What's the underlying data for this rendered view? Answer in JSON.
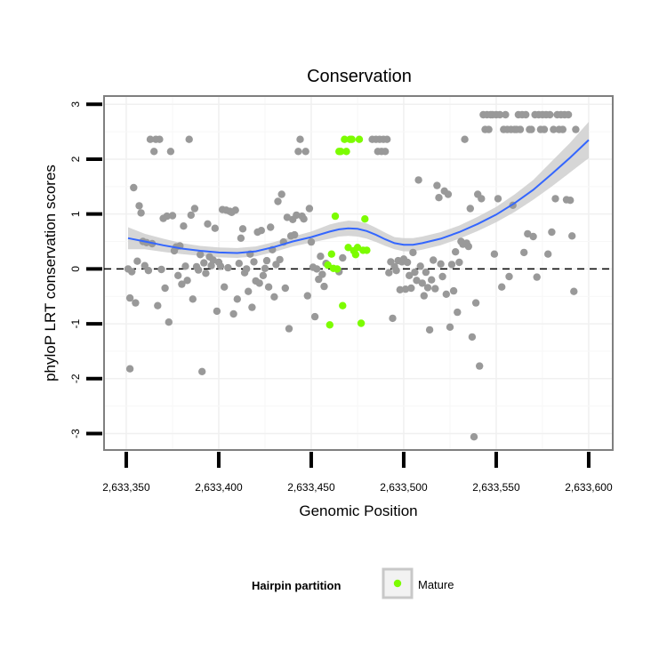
{
  "chart_data": {
    "type": "scatter",
    "title": "Conservation",
    "xlabel": "Genomic Position",
    "ylabel": "phyloP LRT conservation scores",
    "xlim": [
      2633338,
      2633613
    ],
    "ylim": [
      -3.3,
      3.15
    ],
    "x_ticks": [
      2633350,
      2633400,
      2633450,
      2633500,
      2633550,
      2633600
    ],
    "x_tick_labels": [
      "2,633,350",
      "2,633,400",
      "2,633,450",
      "2,633,500",
      "2,633,550",
      "2,633,600"
    ],
    "y_ticks": [
      -3,
      -2,
      -1,
      0,
      1,
      2,
      3
    ],
    "y_tick_labels": [
      "-3",
      "-2",
      "-1",
      "0",
      "1",
      "2",
      "3"
    ],
    "grid": true,
    "reference_line": {
      "y": 0,
      "style": "dashed"
    },
    "legend": {
      "title": "Hairpin partition",
      "placement": "bottom",
      "entries": [
        "Mature"
      ]
    },
    "colors": {
      "other": "#999999",
      "mature": "#7cfc00",
      "smooth": "#3366ff",
      "band": "#cccccc"
    },
    "series": [
      {
        "name": "",
        "role": "other",
        "points": [
          [
            2633351,
            0.0
          ],
          [
            2633352,
            -0.53
          ],
          [
            2633352,
            -1.82
          ],
          [
            2633353,
            -0.05
          ],
          [
            2633354,
            1.48
          ],
          [
            2633355,
            -0.62
          ],
          [
            2633356,
            0.14
          ],
          [
            2633357,
            1.15
          ],
          [
            2633358,
            1.02
          ],
          [
            2633359,
            0.5
          ],
          [
            2633360,
            0.06
          ],
          [
            2633361,
            0.48
          ],
          [
            2633362,
            -0.03
          ],
          [
            2633363,
            2.36
          ],
          [
            2633364,
            0.46
          ],
          [
            2633365,
            2.14
          ],
          [
            2633366,
            2.36
          ],
          [
            2633367,
            -0.67
          ],
          [
            2633368,
            2.36
          ],
          [
            2633369,
            -0.01
          ],
          [
            2633370,
            0.92
          ],
          [
            2633371,
            -0.35
          ],
          [
            2633372,
            0.96
          ],
          [
            2633373,
            -0.97
          ],
          [
            2633374,
            2.14
          ],
          [
            2633375,
            0.97
          ],
          [
            2633376,
            0.33
          ],
          [
            2633377,
            0.4
          ],
          [
            2633378,
            -0.12
          ],
          [
            2633379,
            0.42
          ],
          [
            2633380,
            -0.28
          ],
          [
            2633381,
            0.78
          ],
          [
            2633382,
            0.05
          ],
          [
            2633383,
            -0.21
          ],
          [
            2633384,
            2.36
          ],
          [
            2633385,
            0.98
          ],
          [
            2633386,
            -0.55
          ],
          [
            2633387,
            1.1
          ],
          [
            2633388,
            0.04
          ],
          [
            2633389,
            -0.02
          ],
          [
            2633390,
            0.26
          ],
          [
            2633391,
            -1.87
          ],
          [
            2633392,
            0.11
          ],
          [
            2633393,
            -0.08
          ],
          [
            2633394,
            0.82
          ],
          [
            2633395,
            0.22
          ],
          [
            2633396,
            0.06
          ],
          [
            2633397,
            0.16
          ],
          [
            2633398,
            0.74
          ],
          [
            2633399,
            -0.77
          ],
          [
            2633400,
            0.12
          ],
          [
            2633401,
            0.05
          ],
          [
            2633402,
            1.08
          ],
          [
            2633403,
            -0.33
          ],
          [
            2633404,
            1.07
          ],
          [
            2633405,
            0.02
          ],
          [
            2633406,
            1.05
          ],
          [
            2633407,
            1.03
          ],
          [
            2633408,
            -0.82
          ],
          [
            2633409,
            1.07
          ],
          [
            2633410,
            -0.55
          ],
          [
            2633411,
            0.1
          ],
          [
            2633412,
            0.56
          ],
          [
            2633413,
            0.73
          ],
          [
            2633414,
            -0.07
          ],
          [
            2633415,
            0.0
          ],
          [
            2633416,
            -0.41
          ],
          [
            2633417,
            0.27
          ],
          [
            2633418,
            -0.7
          ],
          [
            2633419,
            0.13
          ],
          [
            2633420,
            -0.22
          ],
          [
            2633421,
            0.67
          ],
          [
            2633422,
            -0.26
          ],
          [
            2633423,
            0.7
          ],
          [
            2633424,
            -0.12
          ],
          [
            2633425,
            0.01
          ],
          [
            2633426,
            0.15
          ],
          [
            2633427,
            -0.33
          ],
          [
            2633428,
            0.76
          ],
          [
            2633429,
            0.35
          ],
          [
            2633430,
            -0.51
          ],
          [
            2633431,
            0.08
          ],
          [
            2633432,
            1.23
          ],
          [
            2633433,
            0.17
          ],
          [
            2633434,
            1.36
          ],
          [
            2633435,
            0.49
          ],
          [
            2633436,
            -0.35
          ],
          [
            2633437,
            0.94
          ],
          [
            2633438,
            -1.09
          ],
          [
            2633439,
            0.6
          ],
          [
            2633440,
            0.9
          ],
          [
            2633441,
            0.62
          ],
          [
            2633442,
            0.98
          ],
          [
            2633443,
            2.14
          ],
          [
            2633444,
            2.36
          ],
          [
            2633445,
            0.96
          ],
          [
            2633446,
            0.91
          ],
          [
            2633447,
            2.14
          ],
          [
            2633448,
            -0.49
          ],
          [
            2633449,
            1.1
          ],
          [
            2633450,
            0.49
          ],
          [
            2633451,
            0.03
          ],
          [
            2633452,
            -0.87
          ],
          [
            2633453,
            0.0
          ],
          [
            2633454,
            -0.19
          ],
          [
            2633455,
            0.23
          ],
          [
            2633456,
            -0.1
          ],
          [
            2633457,
            -0.32
          ],
          [
            2633458,
            0.1
          ],
          [
            2633465,
            -0.05
          ],
          [
            2633467,
            0.2
          ],
          [
            2633483,
            2.36
          ],
          [
            2633485,
            2.36
          ],
          [
            2633486,
            2.14
          ],
          [
            2633487,
            2.36
          ],
          [
            2633488,
            2.14
          ],
          [
            2633489,
            2.36
          ],
          [
            2633490,
            2.14
          ],
          [
            2633491,
            2.36
          ],
          [
            2633492,
            -0.07
          ],
          [
            2633493,
            0.13
          ],
          [
            2633494,
            -0.9
          ],
          [
            2633495,
            0.04
          ],
          [
            2633496,
            -0.03
          ],
          [
            2633497,
            0.15
          ],
          [
            2633498,
            -0.38
          ],
          [
            2633499,
            0.13
          ],
          [
            2633500,
            0.18
          ],
          [
            2633501,
            -0.37
          ],
          [
            2633502,
            0.12
          ],
          [
            2633503,
            -0.12
          ],
          [
            2633504,
            -0.35
          ],
          [
            2633505,
            0.3
          ],
          [
            2633506,
            -0.06
          ],
          [
            2633507,
            -0.21
          ],
          [
            2633508,
            1.62
          ],
          [
            2633509,
            0.05
          ],
          [
            2633510,
            -0.26
          ],
          [
            2633511,
            -0.49
          ],
          [
            2633512,
            -0.06
          ],
          [
            2633513,
            -0.34
          ],
          [
            2633514,
            -1.11
          ],
          [
            2633515,
            -0.2
          ],
          [
            2633516,
            0.16
          ],
          [
            2633517,
            -0.36
          ],
          [
            2633518,
            1.52
          ],
          [
            2633519,
            1.3
          ],
          [
            2633520,
            0.09
          ],
          [
            2633521,
            -0.14
          ],
          [
            2633522,
            1.42
          ],
          [
            2633523,
            -0.46
          ],
          [
            2633524,
            1.36
          ],
          [
            2633525,
            -1.06
          ],
          [
            2633526,
            0.08
          ],
          [
            2633527,
            -0.4
          ],
          [
            2633528,
            0.31
          ],
          [
            2633529,
            -0.79
          ],
          [
            2633530,
            0.12
          ],
          [
            2633531,
            0.5
          ],
          [
            2633532,
            0.45
          ],
          [
            2633533,
            2.36
          ],
          [
            2633534,
            0.47
          ],
          [
            2633535,
            0.41
          ],
          [
            2633536,
            1.1
          ],
          [
            2633537,
            -1.24
          ],
          [
            2633538,
            -3.06
          ],
          [
            2633539,
            -0.62
          ],
          [
            2633540,
            1.36
          ],
          [
            2633541,
            -1.77
          ],
          [
            2633542,
            1.28
          ],
          [
            2633543,
            2.81
          ],
          [
            2633544,
            2.54
          ],
          [
            2633545,
            2.81
          ],
          [
            2633546,
            2.54
          ],
          [
            2633547,
            2.81
          ],
          [
            2633548,
            2.81
          ],
          [
            2633549,
            0.27
          ],
          [
            2633550,
            2.81
          ],
          [
            2633551,
            1.28
          ],
          [
            2633552,
            2.81
          ],
          [
            2633553,
            -0.33
          ],
          [
            2633554,
            2.54
          ],
          [
            2633555,
            2.81
          ],
          [
            2633556,
            2.54
          ],
          [
            2633557,
            -0.14
          ],
          [
            2633558,
            2.54
          ],
          [
            2633559,
            1.16
          ],
          [
            2633560,
            2.54
          ],
          [
            2633561,
            2.54
          ],
          [
            2633562,
            2.81
          ],
          [
            2633563,
            2.54
          ],
          [
            2633564,
            2.81
          ],
          [
            2633565,
            0.3
          ],
          [
            2633566,
            2.81
          ],
          [
            2633567,
            0.64
          ],
          [
            2633568,
            2.54
          ],
          [
            2633569,
            2.54
          ],
          [
            2633570,
            0.59
          ],
          [
            2633571,
            2.81
          ],
          [
            2633572,
            -0.15
          ],
          [
            2633573,
            2.81
          ],
          [
            2633574,
            2.54
          ],
          [
            2633575,
            2.81
          ],
          [
            2633576,
            2.54
          ],
          [
            2633577,
            2.81
          ],
          [
            2633578,
            0.27
          ],
          [
            2633579,
            2.81
          ],
          [
            2633580,
            0.67
          ],
          [
            2633581,
            2.54
          ],
          [
            2633582,
            1.28
          ],
          [
            2633583,
            2.81
          ],
          [
            2633584,
            2.54
          ],
          [
            2633585,
            2.81
          ],
          [
            2633586,
            2.54
          ],
          [
            2633587,
            2.81
          ],
          [
            2633588,
            1.26
          ],
          [
            2633589,
            2.81
          ],
          [
            2633590,
            1.25
          ],
          [
            2633591,
            0.6
          ],
          [
            2633592,
            -0.41
          ],
          [
            2633593,
            2.54
          ]
        ]
      },
      {
        "name": "Mature",
        "role": "mature",
        "points": [
          [
            2633459,
            0.07
          ],
          [
            2633460,
            -1.02
          ],
          [
            2633461,
            0.27
          ],
          [
            2633462,
            0.01
          ],
          [
            2633463,
            0.96
          ],
          [
            2633464,
            0.0
          ],
          [
            2633465,
            2.14
          ],
          [
            2633466,
            2.14
          ],
          [
            2633467,
            -0.67
          ],
          [
            2633468,
            2.36
          ],
          [
            2633469,
            2.14
          ],
          [
            2633470,
            0.39
          ],
          [
            2633471,
            2.36
          ],
          [
            2633472,
            2.36
          ],
          [
            2633473,
            0.33
          ],
          [
            2633474,
            0.26
          ],
          [
            2633475,
            0.39
          ],
          [
            2633476,
            2.36
          ],
          [
            2633477,
            -0.99
          ],
          [
            2633478,
            0.34
          ],
          [
            2633479,
            0.91
          ],
          [
            2633480,
            0.34
          ]
        ]
      }
    ],
    "smooth": {
      "method": "loess",
      "x": [
        2633351,
        2633360,
        2633370,
        2633380,
        2633390,
        2633400,
        2633410,
        2633420,
        2633430,
        2633440,
        2633450,
        2633460,
        2633465,
        2633470,
        2633475,
        2633480,
        2633485,
        2633490,
        2633495,
        2633500,
        2633505,
        2633510,
        2633520,
        2633530,
        2633540,
        2633550,
        2633560,
        2633570,
        2633580,
        2633590,
        2633600
      ],
      "y": [
        0.56,
        0.5,
        0.43,
        0.37,
        0.33,
        0.3,
        0.29,
        0.32,
        0.4,
        0.5,
        0.58,
        0.68,
        0.72,
        0.74,
        0.73,
        0.69,
        0.62,
        0.54,
        0.47,
        0.44,
        0.44,
        0.47,
        0.55,
        0.67,
        0.82,
        0.99,
        1.2,
        1.44,
        1.73,
        2.03,
        2.35
      ],
      "lower": [
        0.36,
        0.36,
        0.31,
        0.27,
        0.24,
        0.21,
        0.2,
        0.23,
        0.31,
        0.41,
        0.48,
        0.55,
        0.59,
        0.6,
        0.59,
        0.55,
        0.49,
        0.42,
        0.36,
        0.32,
        0.32,
        0.35,
        0.43,
        0.55,
        0.69,
        0.85,
        1.04,
        1.26,
        1.5,
        1.76,
        2.02
      ],
      "upper": [
        0.76,
        0.64,
        0.55,
        0.47,
        0.42,
        0.39,
        0.38,
        0.41,
        0.49,
        0.59,
        0.68,
        0.81,
        0.85,
        0.88,
        0.87,
        0.83,
        0.75,
        0.66,
        0.58,
        0.56,
        0.56,
        0.59,
        0.67,
        0.79,
        0.95,
        1.13,
        1.36,
        1.62,
        1.96,
        2.3,
        2.68
      ]
    }
  }
}
